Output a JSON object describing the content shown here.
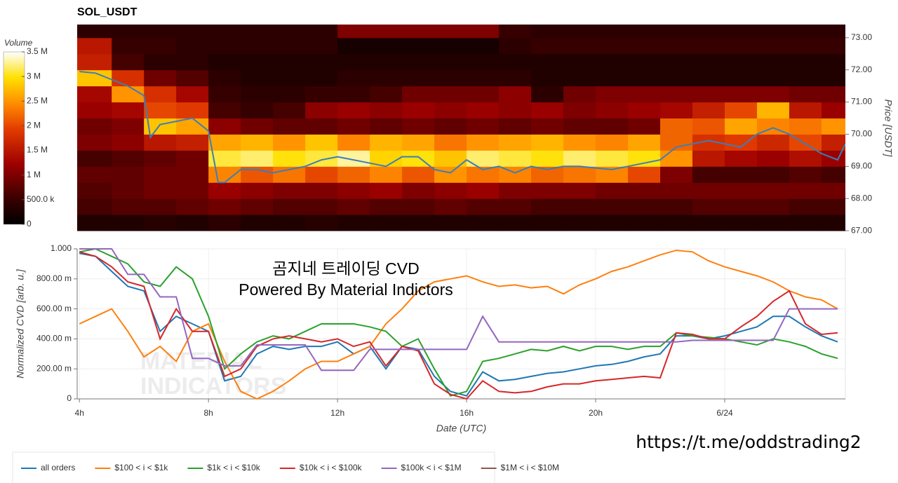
{
  "chart_data": [
    {
      "type": "heatmap",
      "title": "SOL_USDT",
      "ylabel": "Price [USDT]",
      "xlim": [
        3.93,
        27.74
      ],
      "ylim": [
        66.98,
        73.41
      ],
      "yticks": [
        {
          "value": 67,
          "label": "67.00"
        },
        {
          "value": 68,
          "label": "68.00"
        },
        {
          "value": 69,
          "label": "69.00"
        },
        {
          "value": 70,
          "label": "70.00"
        },
        {
          "value": 71,
          "label": "71.00"
        },
        {
          "value": 72,
          "label": "72.00"
        },
        {
          "value": 73,
          "label": "73.00"
        }
      ],
      "x_bins": [
        3.93,
        5,
        6,
        7,
        8,
        9,
        10,
        11,
        12,
        13,
        14,
        15,
        16,
        17,
        18,
        19,
        20,
        21,
        22,
        23,
        24,
        25,
        26,
        27,
        27.74
      ],
      "y_bins": [
        67.0,
        67.5,
        68.0,
        68.5,
        69.0,
        69.5,
        70.0,
        70.5,
        71.0,
        71.5,
        72.0,
        72.5,
        73.0,
        73.5
      ],
      "values": [
        [
          300000.0,
          300000.0,
          350000.0,
          300000.0,
          400000.0,
          300000.0,
          300000.0,
          350000.0,
          300000.0,
          300000.0,
          300000.0,
          300000.0,
          300000.0,
          300000.0,
          300000.0,
          300000.0,
          300000.0,
          300000.0,
          300000.0,
          300000.0,
          300000.0,
          300000.0,
          300000.0,
          300000.0
        ],
        [
          600000.0,
          700000.0,
          700000.0,
          800000.0,
          900000.0,
          800000.0,
          700000.0,
          700000.0,
          800000.0,
          700000.0,
          700000.0,
          800000.0,
          700000.0,
          700000.0,
          600000.0,
          600000.0,
          600000.0,
          600000.0,
          600000.0,
          700000.0,
          700000.0,
          700000.0,
          600000.0,
          600000.0
        ],
        [
          700000.0,
          800000.0,
          900000.0,
          900000.0,
          1200000.0,
          1100000.0,
          1000000.0,
          1000000.0,
          1100000.0,
          1200000.0,
          1000000.0,
          1100000.0,
          1200000.0,
          1000000.0,
          1000000.0,
          1000000.0,
          900000.0,
          900000.0,
          900000.0,
          900000.0,
          900000.0,
          900000.0,
          900000.0,
          900000.0
        ],
        [
          800000.0,
          800000.0,
          900000.0,
          900000.0,
          2400000.0,
          2100000.0,
          2300000.0,
          2000000.0,
          2200000.0,
          2400000.0,
          2100000.0,
          2500000.0,
          2300000.0,
          2400000.0,
          2200000.0,
          2300000.0,
          2400000.0,
          2000000.0,
          1000000.0,
          600000.0,
          600000.0,
          600000.0,
          700000.0,
          600000.0
        ],
        [
          600000.0,
          700000.0,
          800000.0,
          900000.0,
          3100000.0,
          3200000.0,
          3000000.0,
          3100000.0,
          3300000.0,
          2900000.0,
          3000000.0,
          2800000.0,
          3200000.0,
          3100000.0,
          3000000.0,
          3200000.0,
          3100000.0,
          3000000.0,
          2500000.0,
          1500000.0,
          1300000.0,
          1200000.0,
          1400000.0,
          1200000.0
        ],
        [
          1000000.0,
          1100000.0,
          1500000.0,
          1600000.0,
          2600000.0,
          2700000.0,
          2500000.0,
          2800000.0,
          2400000.0,
          2700000.0,
          2600000.0,
          2300000.0,
          2500000.0,
          2600000.0,
          2700000.0,
          2500000.0,
          2400000.0,
          2600000.0,
          2200000.0,
          1800000.0,
          1900000.0,
          1700000.0,
          2000000.0,
          1600000.0
        ],
        [
          900000.0,
          1000000.0,
          2800000.0,
          2600000.0,
          1100000.0,
          900000.0,
          800000.0,
          800000.0,
          900000.0,
          800000.0,
          900000.0,
          800000.0,
          900000.0,
          800000.0,
          900000.0,
          800000.0,
          800000.0,
          900000.0,
          2200000.0,
          2100000.0,
          2600000.0,
          2400000.0,
          2300000.0,
          2500000.0
        ],
        [
          1200000.0,
          1300000.0,
          2000000.0,
          1900000.0,
          600000.0,
          500000.0,
          600000.0,
          1100000.0,
          1200000.0,
          1100000.0,
          1200000.0,
          1100000.0,
          1200000.0,
          1100000.0,
          1200000.0,
          1000000.0,
          1100000.0,
          1200000.0,
          1300000.0,
          1600000.0,
          2000000.0,
          2700000.0,
          1500000.0,
          1200000.0
        ],
        [
          1300000.0,
          2500000.0,
          1800000.0,
          1300000.0,
          500000.0,
          400000.0,
          400000.0,
          500000.0,
          500000.0,
          600000.0,
          900000.0,
          900000.0,
          900000.0,
          1100000.0,
          400000.0,
          900000.0,
          1000000.0,
          1000000.0,
          1000000.0,
          1000000.0,
          1000000.0,
          1000000.0,
          900000.0,
          900000.0
        ],
        [
          2800000.0,
          1800000.0,
          900000.0,
          700000.0,
          400000.0,
          300000.0,
          300000.0,
          300000.0,
          400000.0,
          400000.0,
          400000.0,
          400000.0,
          400000.0,
          400000.0,
          300000.0,
          300000.0,
          300000.0,
          300000.0,
          300000.0,
          300000.0,
          300000.0,
          300000.0,
          300000.0,
          300000.0
        ],
        [
          1600000.0,
          600000.0,
          400000.0,
          400000.0,
          300000.0,
          300000.0,
          300000.0,
          300000.0,
          300000.0,
          300000.0,
          300000.0,
          300000.0,
          300000.0,
          300000.0,
          300000.0,
          300000.0,
          300000.0,
          300000.0,
          300000.0,
          300000.0,
          300000.0,
          300000.0,
          300000.0,
          300000.0
        ],
        [
          1500000.0,
          500000.0,
          500000.0,
          400000.0,
          400000.0,
          400000.0,
          400000.0,
          400000.0,
          200000.0,
          200000.0,
          200000.0,
          200000.0,
          200000.0,
          400000.0,
          500000.0,
          500000.0,
          500000.0,
          500000.0,
          500000.0,
          500000.0,
          500000.0,
          500000.0,
          500000.0,
          500000.0
        ],
        [
          400000.0,
          400000.0,
          400000.0,
          400000.0,
          400000.0,
          400000.0,
          400000.0,
          400000.0,
          1000000.0,
          1000000.0,
          1000000.0,
          1000000.0,
          1000000.0,
          500000.0,
          400000.0,
          400000.0,
          400000.0,
          400000.0,
          400000.0,
          400000.0,
          400000.0,
          400000.0,
          400000.0,
          400000.0
        ]
      ],
      "colorbar": {
        "label": "Volume",
        "lim": [
          0,
          3500000
        ],
        "ticks": [
          0,
          {
            "value": 500000,
            "label": "500.0 k"
          },
          {
            "value": 1000000,
            "label": "1 M"
          },
          {
            "value": 1500000,
            "label": "1.5 M"
          },
          {
            "value": 2000000,
            "label": "2 M"
          },
          {
            "value": 2500000,
            "label": "2.5 M"
          },
          {
            "value": 3000000,
            "label": "3 M"
          },
          {
            "value": 3500000,
            "label": "3.5 M"
          }
        ]
      },
      "price_line": {
        "color": "#3a7fb8",
        "x": [
          4,
          4.5,
          5,
          5.5,
          6,
          6.2,
          6.5,
          7,
          7.5,
          8,
          8.3,
          8.5,
          9,
          9.5,
          10,
          10.5,
          11,
          11.5,
          12,
          12.5,
          13,
          13.5,
          14,
          14.5,
          15,
          15.5,
          16,
          16.5,
          17,
          17.5,
          18,
          18.5,
          19,
          19.5,
          20,
          20.5,
          21,
          21.5,
          22,
          22.5,
          23,
          23.5,
          24,
          24.5,
          25,
          25.5,
          26,
          26.5,
          27,
          27.5,
          27.74
        ],
        "values": [
          71.95,
          71.9,
          71.7,
          71.5,
          71.2,
          69.9,
          70.3,
          70.4,
          70.5,
          70.1,
          68.5,
          68.5,
          68.9,
          68.9,
          68.8,
          68.9,
          69.0,
          69.2,
          69.3,
          69.2,
          69.1,
          69.0,
          69.3,
          69.3,
          68.9,
          68.8,
          69.2,
          68.9,
          69.0,
          68.8,
          69.0,
          68.9,
          69.0,
          69.0,
          68.95,
          68.9,
          69.0,
          69.1,
          69.2,
          69.6,
          69.7,
          69.8,
          69.7,
          69.6,
          70.0,
          70.2,
          70.0,
          69.7,
          69.4,
          69.2,
          69.7
        ]
      }
    },
    {
      "type": "line",
      "xlabel": "Date (UTC)",
      "ylabel": "Normalized CVD [arb. u.]",
      "annotations": [
        "곰지네 트레이딩 CVD",
        "Powered By Material Indictors"
      ],
      "watermark": [
        "MATERIAL",
        "INDICATORS"
      ],
      "grid": true,
      "legend": "bottom-left",
      "xlim": [
        3.93,
        27.74
      ],
      "ylim": [
        0,
        1
      ],
      "xticks": [
        {
          "value": 4,
          "label": "4h"
        },
        {
          "value": 8,
          "label": "8h"
        },
        {
          "value": 12,
          "label": "12h"
        },
        {
          "value": 16,
          "label": "16h"
        },
        {
          "value": 20,
          "label": "20h"
        },
        {
          "value": 24,
          "label": "6/24"
        }
      ],
      "yticks": [
        0,
        {
          "value": 0.2,
          "label": "200.00 m"
        },
        {
          "value": 0.4,
          "label": "400.00 m"
        },
        {
          "value": 0.6,
          "label": "600.00 m"
        },
        {
          "value": 0.8,
          "label": "800.00 m"
        },
        {
          "value": 1,
          "label": "1.000"
        }
      ],
      "x": [
        4,
        4.5,
        5,
        5.5,
        6,
        6.5,
        7,
        7.5,
        8,
        8.5,
        9,
        9.5,
        10,
        10.5,
        11,
        11.5,
        12,
        12.5,
        13,
        13.5,
        14,
        14.5,
        15,
        15.5,
        16,
        16.5,
        17,
        17.5,
        18,
        18.5,
        19,
        19.5,
        20,
        20.5,
        21,
        21.5,
        22,
        22.5,
        23,
        23.5,
        24,
        24.5,
        25,
        25.5,
        26,
        26.5,
        27,
        27.5
      ],
      "series": [
        {
          "name": "all orders",
          "color": "#1f77b4",
          "values": [
            0.97,
            0.95,
            0.85,
            0.75,
            0.72,
            0.45,
            0.55,
            0.5,
            0.45,
            0.12,
            0.15,
            0.3,
            0.35,
            0.33,
            0.35,
            0.35,
            0.38,
            0.3,
            0.35,
            0.2,
            0.35,
            0.33,
            0.15,
            0.05,
            0.02,
            0.18,
            0.12,
            0.13,
            0.15,
            0.17,
            0.18,
            0.2,
            0.22,
            0.23,
            0.25,
            0.28,
            0.3,
            0.42,
            0.42,
            0.4,
            0.42,
            0.45,
            0.48,
            0.55,
            0.55,
            0.48,
            0.42,
            0.38
          ]
        },
        {
          "name": "$100 < i < $1k",
          "color": "#ff7f0e",
          "values": [
            0.5,
            0.55,
            0.6,
            0.45,
            0.28,
            0.35,
            0.25,
            0.45,
            0.5,
            0.25,
            0.05,
            0,
            0.05,
            0.12,
            0.2,
            0.25,
            0.25,
            0.3,
            0.35,
            0.5,
            0.6,
            0.72,
            0.78,
            0.8,
            0.82,
            0.78,
            0.75,
            0.76,
            0.74,
            0.75,
            0.7,
            0.76,
            0.8,
            0.85,
            0.88,
            0.92,
            0.96,
            0.99,
            0.98,
            0.92,
            0.88,
            0.85,
            0.82,
            0.78,
            0.72,
            0.68,
            0.66,
            0.6
          ]
        },
        {
          "name": "$1k < i < $10k",
          "color": "#2ca02c",
          "values": [
            0.98,
            1.0,
            0.95,
            0.9,
            0.78,
            0.75,
            0.88,
            0.8,
            0.55,
            0.2,
            0.3,
            0.38,
            0.42,
            0.4,
            0.45,
            0.5,
            0.5,
            0.5,
            0.48,
            0.45,
            0.35,
            0.4,
            0.2,
            0.02,
            0.05,
            0.25,
            0.27,
            0.3,
            0.33,
            0.32,
            0.35,
            0.32,
            0.35,
            0.35,
            0.33,
            0.35,
            0.35,
            0.44,
            0.42,
            0.41,
            0.4,
            0.38,
            0.36,
            0.4,
            0.38,
            0.35,
            0.3,
            0.27
          ]
        },
        {
          "name": "$10k < i < $100k",
          "color": "#d62728",
          "values": [
            0.98,
            0.95,
            0.88,
            0.78,
            0.75,
            0.4,
            0.6,
            0.45,
            0.45,
            0.15,
            0.2,
            0.35,
            0.4,
            0.42,
            0.4,
            0.38,
            0.4,
            0.35,
            0.38,
            0.22,
            0.35,
            0.32,
            0.1,
            0.03,
            0,
            0.12,
            0.05,
            0.04,
            0.05,
            0.08,
            0.1,
            0.1,
            0.12,
            0.13,
            0.14,
            0.15,
            0.14,
            0.44,
            0.43,
            0.4,
            0.4,
            0.48,
            0.55,
            0.65,
            0.72,
            0.5,
            0.43,
            0.44
          ]
        },
        {
          "name": "$100k < i < $1M",
          "color": "#9467bd",
          "values": [
            1.0,
            1.0,
            1.0,
            0.83,
            0.83,
            0.68,
            0.68,
            0.27,
            0.27,
            0.22,
            0.22,
            0.36,
            0.36,
            0.36,
            0.36,
            0.19,
            0.19,
            0.19,
            0.33,
            0.33,
            0.33,
            0.33,
            0.33,
            0.33,
            0.33,
            0.55,
            0.38,
            0.38,
            0.38,
            0.38,
            0.38,
            0.38,
            0.38,
            0.38,
            0.38,
            0.38,
            0.38,
            0.38,
            0.39,
            0.39,
            0.39,
            0.39,
            0.39,
            0.39,
            0.6,
            0.6,
            0.6,
            0.6
          ]
        },
        {
          "name": "$1M < i < $10M",
          "color": "#8c564b",
          "values": [
            null,
            null,
            null,
            null,
            null,
            null,
            null,
            null,
            null,
            null,
            null,
            null,
            null,
            null,
            null,
            null,
            null,
            null,
            null,
            null,
            null,
            null,
            null,
            null,
            null,
            null,
            null,
            null,
            null,
            null,
            null,
            null,
            null,
            null,
            null,
            null,
            null,
            null,
            null,
            null,
            null,
            null,
            null,
            null,
            null,
            null,
            null,
            null
          ]
        }
      ]
    }
  ],
  "url": "https://t.me/oddstrading2"
}
